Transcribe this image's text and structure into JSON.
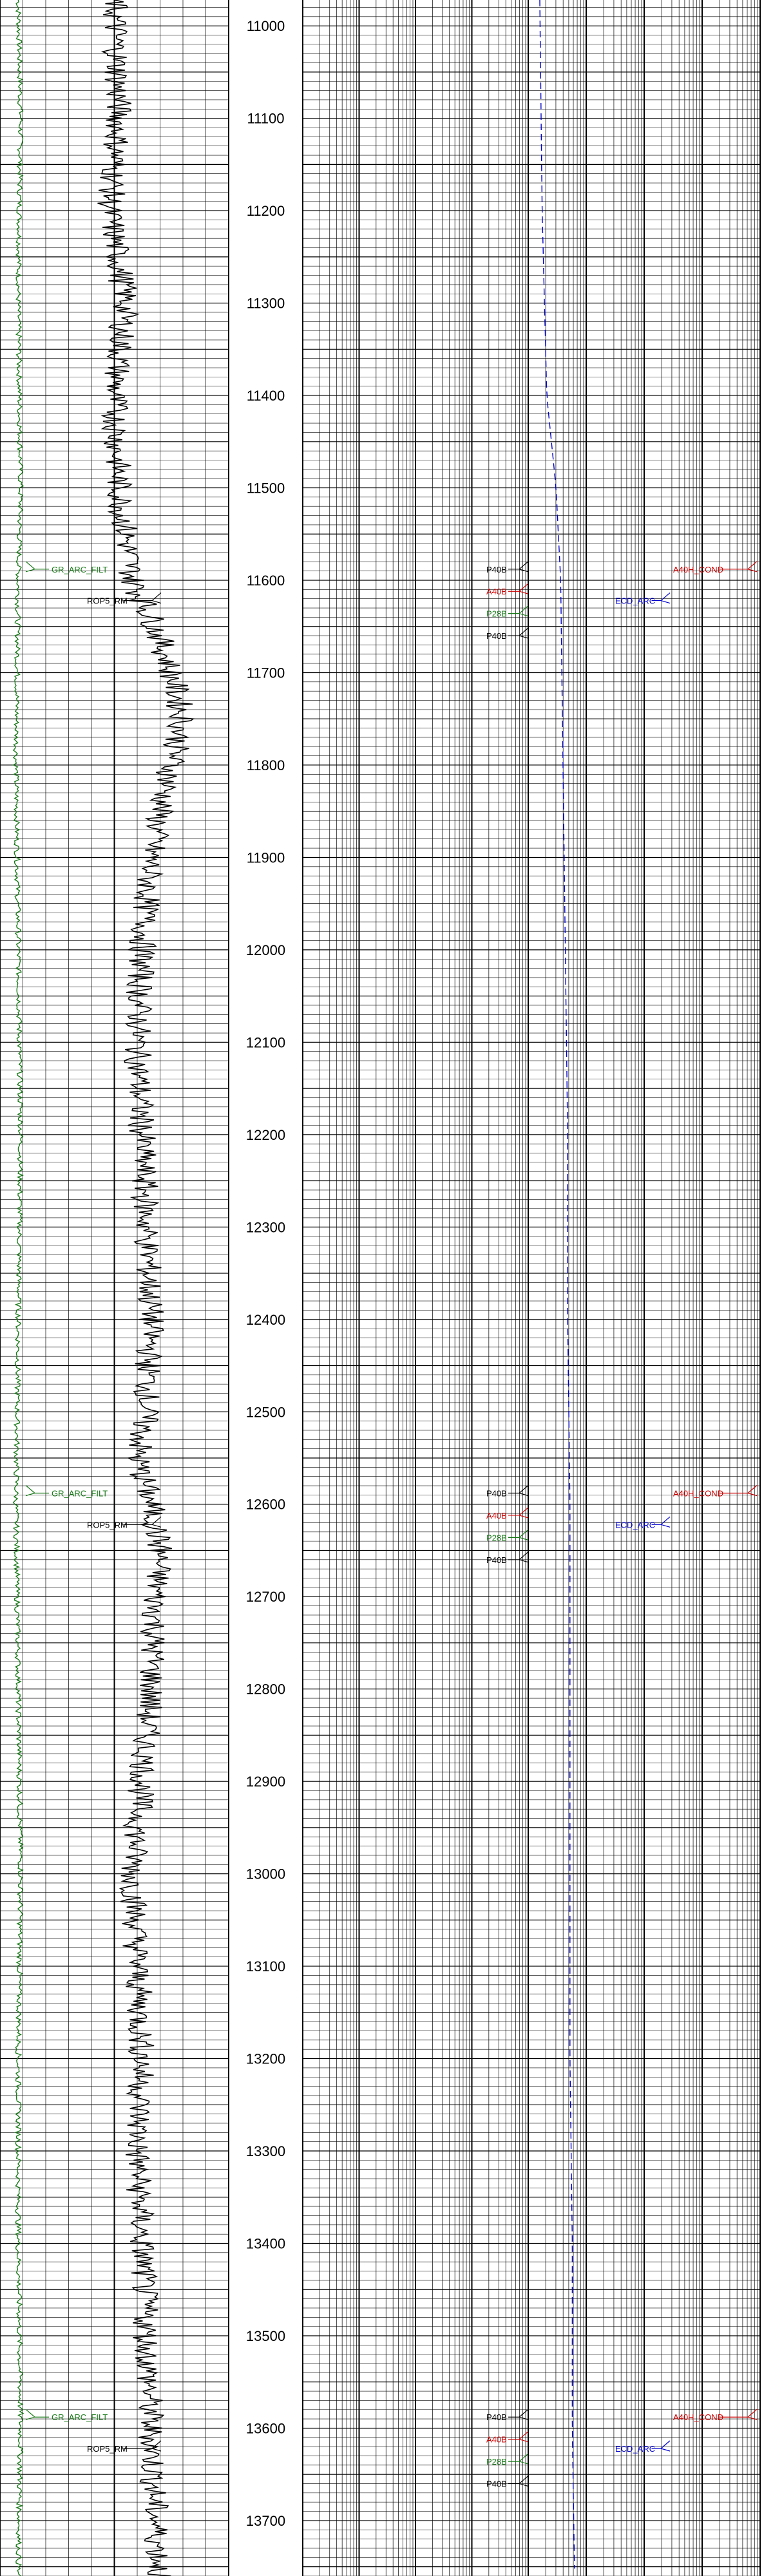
{
  "chart_data": {
    "type": "line",
    "title": "",
    "depth_axis": {
      "labels": [
        11000,
        11100,
        11200,
        11300,
        11400,
        11500,
        11600,
        11700,
        11800,
        11900,
        12000,
        12100,
        12200,
        12300,
        12400,
        12500,
        12600,
        12700,
        12800,
        12900,
        13000,
        13100,
        13200,
        13300,
        13400,
        13500,
        13600,
        13700
      ],
      "range": [
        10972,
        13760
      ]
    },
    "tracks": [
      {
        "id": "track1",
        "grid": "linear",
        "curves": [
          "GR_ARC_FILT",
          "ROP5_RM"
        ]
      },
      {
        "id": "depth",
        "grid": "none"
      },
      {
        "id": "track2",
        "grid": "log",
        "curves": [
          "P40B",
          "A40B",
          "P28B",
          "P40B"
        ]
      },
      {
        "id": "track3",
        "grid": "log",
        "curves": [
          "ECD_ARC",
          "A40H_COND"
        ]
      }
    ],
    "curve_labels": {
      "track1": [
        {
          "text": "GR_ARC_FILT",
          "color": "#1a7a1a",
          "depths": [
            11588,
            12588,
            13588
          ]
        },
        {
          "text": "ROP5_RM",
          "color": "#000000",
          "depths": [
            11622,
            12622,
            13622
          ]
        }
      ],
      "track2": [
        {
          "text": "P40B",
          "color": "#000000",
          "depths": [
            11588,
            12588,
            13588
          ]
        },
        {
          "text": "A40B",
          "color": "#cc0000",
          "depths": [
            11612,
            12612,
            13612
          ]
        },
        {
          "text": "P28B",
          "color": "#1a7a1a",
          "depths": [
            11636,
            12636,
            13636
          ]
        },
        {
          "text": "P40B",
          "color": "#000000",
          "depths": [
            11660,
            12660,
            13660
          ]
        }
      ],
      "track3": [
        {
          "text": "ECD_ARC",
          "color": "#0000cc",
          "depths": [
            11622,
            12622,
            13622
          ]
        },
        {
          "text": "A40H_COND",
          "color": "#cc0000",
          "depths": [
            11588,
            12588,
            13588
          ]
        }
      ]
    },
    "series": [
      {
        "color": "#1a7a1a",
        "track": "track1",
        "dash": "",
        "points": [
          [
            10972,
            0.08
          ],
          [
            11100,
            0.09
          ],
          [
            11300,
            0.08
          ],
          [
            11500,
            0.09
          ],
          [
            11600,
            0.08
          ],
          [
            11800,
            0.07
          ],
          [
            12000,
            0.08
          ],
          [
            12200,
            0.09
          ],
          [
            12400,
            0.08
          ],
          [
            12600,
            0.07
          ],
          [
            12800,
            0.08
          ],
          [
            13000,
            0.09
          ],
          [
            13200,
            0.08
          ],
          [
            13400,
            0.08
          ],
          [
            13600,
            0.09
          ],
          [
            13760,
            0.08
          ]
        ]
      },
      {
        "color": "#000000",
        "track": "track1",
        "dash": "",
        "points": [
          [
            10972,
            0.5
          ],
          [
            11100,
            0.52
          ],
          [
            11200,
            0.48
          ],
          [
            11300,
            0.55
          ],
          [
            11400,
            0.5
          ],
          [
            11500,
            0.52
          ],
          [
            11600,
            0.58
          ],
          [
            11650,
            0.68
          ],
          [
            11700,
            0.75
          ],
          [
            11750,
            0.8
          ],
          [
            11800,
            0.75
          ],
          [
            11850,
            0.7
          ],
          [
            11900,
            0.66
          ],
          [
            12000,
            0.62
          ],
          [
            12100,
            0.6
          ],
          [
            12200,
            0.62
          ],
          [
            12300,
            0.64
          ],
          [
            12400,
            0.66
          ],
          [
            12500,
            0.64
          ],
          [
            12550,
            0.6
          ],
          [
            12600,
            0.66
          ],
          [
            12650,
            0.7
          ],
          [
            12700,
            0.68
          ],
          [
            12800,
            0.66
          ],
          [
            12900,
            0.62
          ],
          [
            13000,
            0.58
          ],
          [
            13100,
            0.6
          ],
          [
            13200,
            0.62
          ],
          [
            13300,
            0.6
          ],
          [
            13400,
            0.62
          ],
          [
            13500,
            0.64
          ],
          [
            13600,
            0.66
          ],
          [
            13700,
            0.68
          ],
          [
            13760,
            0.7
          ]
        ]
      },
      {
        "color": "#0000cc",
        "track": "track3",
        "dash": "10,6",
        "points": [
          [
            10972,
            0.05
          ],
          [
            11200,
            0.06
          ],
          [
            11400,
            0.08
          ],
          [
            11500,
            0.12
          ],
          [
            11600,
            0.14
          ],
          [
            11800,
            0.15
          ],
          [
            12000,
            0.16
          ],
          [
            12200,
            0.17
          ],
          [
            12400,
            0.17
          ],
          [
            12600,
            0.18
          ],
          [
            12800,
            0.18
          ],
          [
            13000,
            0.18
          ],
          [
            13200,
            0.18
          ],
          [
            13400,
            0.19
          ],
          [
            13600,
            0.19
          ],
          [
            13760,
            0.2
          ]
        ]
      }
    ]
  }
}
